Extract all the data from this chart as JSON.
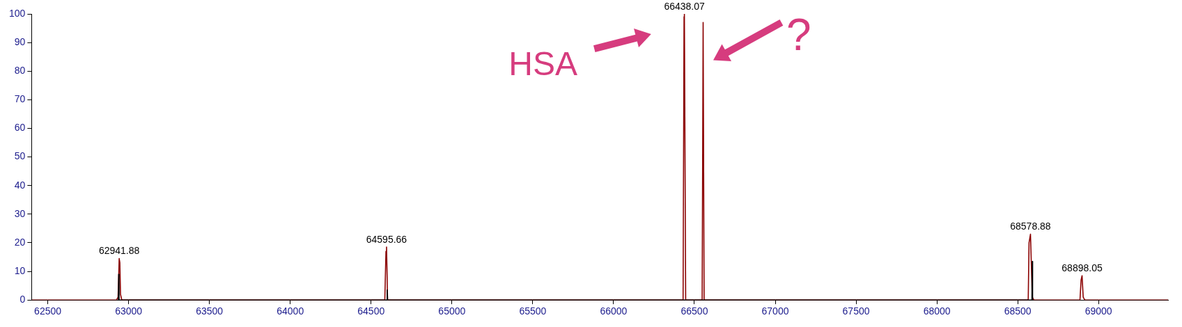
{
  "chart_data": {
    "type": "line",
    "xlim": [
      62400,
      69430
    ],
    "xticks": [
      62500,
      63000,
      63500,
      64000,
      64500,
      65000,
      65500,
      66000,
      66500,
      67000,
      67500,
      68000,
      68500,
      69000
    ],
    "ylim": [
      0,
      100
    ],
    "yticks": [
      0,
      10,
      20,
      30,
      40,
      50,
      60,
      70,
      80,
      90,
      100
    ],
    "grid": false,
    "legend": false,
    "marker": "none",
    "line_style": "solid",
    "series": [
      {
        "color": "#8b0000",
        "x": [
          62400,
          62925,
          62935,
          62941.88,
          62946,
          62950,
          62958,
          64585,
          64592,
          64595.66,
          64602,
          66430,
          66436,
          66438.07,
          66446,
          66548,
          66554,
          66560,
          68565,
          68570,
          68578.88,
          68590,
          68600,
          68885,
          68892,
          68898.05,
          68905,
          68915,
          69430
        ],
        "values": [
          0,
          0,
          1,
          14.5,
          13,
          2,
          0,
          0,
          17,
          18.5,
          0,
          0,
          99,
          100,
          0,
          0,
          97,
          0,
          0,
          20,
          23,
          1,
          0,
          0,
          7,
          8.5,
          1,
          0,
          0
        ]
      },
      {
        "color": "#000000",
        "x": [
          62937,
          62939,
          62941,
          64598,
          64600,
          64602,
          68588,
          68590,
          68592
        ],
        "values": [
          0,
          9,
          0,
          0,
          3.5,
          0,
          0,
          13.5,
          0
        ]
      }
    ],
    "annotations": [
      {
        "text": "62941.88",
        "x": 62941.88,
        "y": 14.5
      },
      {
        "text": "64595.66",
        "x": 64595.66,
        "y": 18.5
      },
      {
        "text": "66438.07",
        "x": 66438.07,
        "y": 100
      },
      {
        "text": "68578.88",
        "x": 68578.88,
        "y": 23
      },
      {
        "text": "68898.05",
        "x": 68898.05,
        "y": 8.5
      },
      "HSA",
      "?"
    ]
  }
}
